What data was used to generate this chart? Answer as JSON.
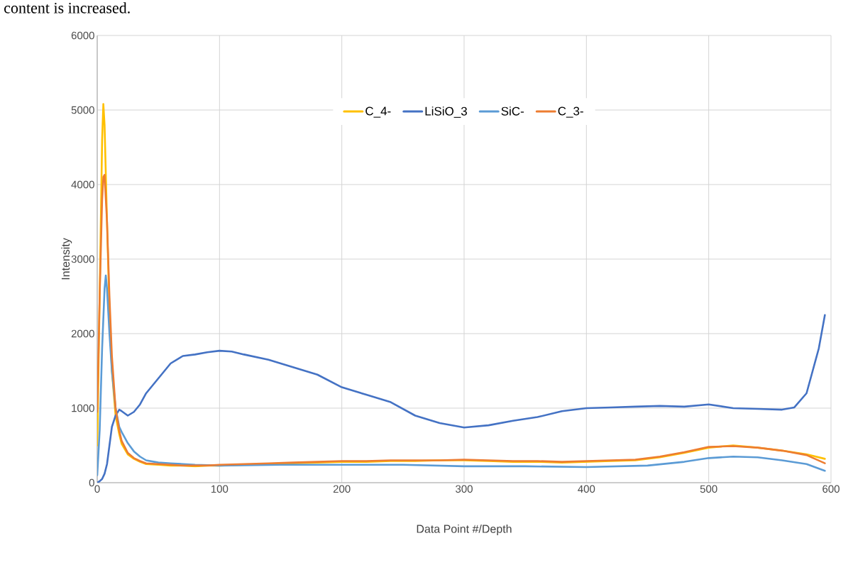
{
  "chart_data": {
    "type": "line",
    "xlabel": "Data Point #/Depth",
    "ylabel": "Intensity",
    "annotations": [
      "content is increased."
    ],
    "xlim": [
      0,
      600
    ],
    "ylim": [
      0,
      6000
    ],
    "xticks": [
      0,
      100,
      200,
      300,
      400,
      500,
      600
    ],
    "yticks": [
      0,
      1000,
      2000,
      3000,
      4000,
      5000,
      6000
    ],
    "grid": true,
    "legend": "top",
    "marker": "none",
    "line_style": "solid",
    "series": [
      {
        "name": "C_4-",
        "color": "#ffc000",
        "x": [
          0,
          2,
          4,
          5,
          6,
          8,
          10,
          12,
          15,
          18,
          20,
          25,
          30,
          35,
          40,
          50,
          60,
          70,
          80,
          90,
          100,
          120,
          140,
          160,
          180,
          200,
          220,
          240,
          260,
          280,
          300,
          320,
          340,
          360,
          380,
          400,
          420,
          440,
          460,
          480,
          500,
          520,
          540,
          560,
          580,
          595
        ],
        "values": [
          500,
          2500,
          4600,
          5080,
          4800,
          3500,
          2300,
          1500,
          900,
          650,
          520,
          380,
          320,
          280,
          250,
          240,
          230,
          230,
          220,
          230,
          230,
          240,
          250,
          260,
          270,
          280,
          280,
          290,
          290,
          300,
          300,
          290,
          280,
          280,
          270,
          280,
          290,
          300,
          340,
          400,
          470,
          500,
          470,
          430,
          380,
          320
        ]
      },
      {
        "name": "LiSiO_3",
        "color": "#4472c4",
        "x": [
          0,
          2,
          4,
          6,
          8,
          10,
          12,
          15,
          18,
          20,
          25,
          30,
          35,
          40,
          50,
          60,
          70,
          80,
          90,
          100,
          110,
          120,
          140,
          160,
          180,
          200,
          220,
          240,
          260,
          280,
          300,
          320,
          340,
          360,
          380,
          400,
          420,
          440,
          460,
          480,
          500,
          520,
          540,
          560,
          570,
          580,
          585,
          590,
          595
        ],
        "values": [
          0,
          20,
          50,
          120,
          250,
          500,
          750,
          900,
          980,
          960,
          900,
          950,
          1050,
          1200,
          1400,
          1600,
          1700,
          1720,
          1750,
          1770,
          1760,
          1720,
          1650,
          1550,
          1450,
          1280,
          1180,
          1080,
          900,
          800,
          740,
          770,
          830,
          880,
          960,
          1000,
          1010,
          1020,
          1030,
          1020,
          1050,
          1000,
          990,
          980,
          1010,
          1200,
          1500,
          1800,
          2250
        ]
      },
      {
        "name": "SiC-",
        "color": "#5b9bd5",
        "x": [
          0,
          2,
          4,
          6,
          7,
          8,
          10,
          12,
          15,
          18,
          20,
          25,
          30,
          35,
          40,
          50,
          60,
          80,
          100,
          150,
          200,
          250,
          300,
          350,
          400,
          450,
          480,
          500,
          520,
          540,
          560,
          580,
          595
        ],
        "values": [
          100,
          700,
          1800,
          2600,
          2780,
          2600,
          2000,
          1500,
          1000,
          750,
          680,
          530,
          420,
          350,
          300,
          270,
          260,
          240,
          230,
          240,
          240,
          240,
          220,
          220,
          210,
          230,
          280,
          330,
          350,
          340,
          300,
          250,
          160
        ]
      },
      {
        "name": "C_3-",
        "color": "#ed7d31",
        "x": [
          0,
          2,
          4,
          5,
          6,
          8,
          10,
          12,
          15,
          18,
          20,
          25,
          30,
          35,
          40,
          50,
          60,
          70,
          80,
          90,
          100,
          120,
          140,
          160,
          180,
          200,
          220,
          240,
          260,
          280,
          300,
          320,
          340,
          360,
          380,
          400,
          420,
          440,
          460,
          480,
          500,
          520,
          540,
          560,
          580,
          595
        ],
        "values": [
          950,
          2500,
          3800,
          4100,
          4130,
          3500,
          2500,
          1700,
          1000,
          700,
          560,
          400,
          330,
          290,
          260,
          250,
          240,
          230,
          230,
          230,
          240,
          250,
          260,
          270,
          280,
          290,
          290,
          300,
          300,
          300,
          310,
          300,
          290,
          290,
          280,
          290,
          300,
          310,
          350,
          410,
          480,
          490,
          470,
          430,
          370,
          260
        ]
      }
    ]
  }
}
